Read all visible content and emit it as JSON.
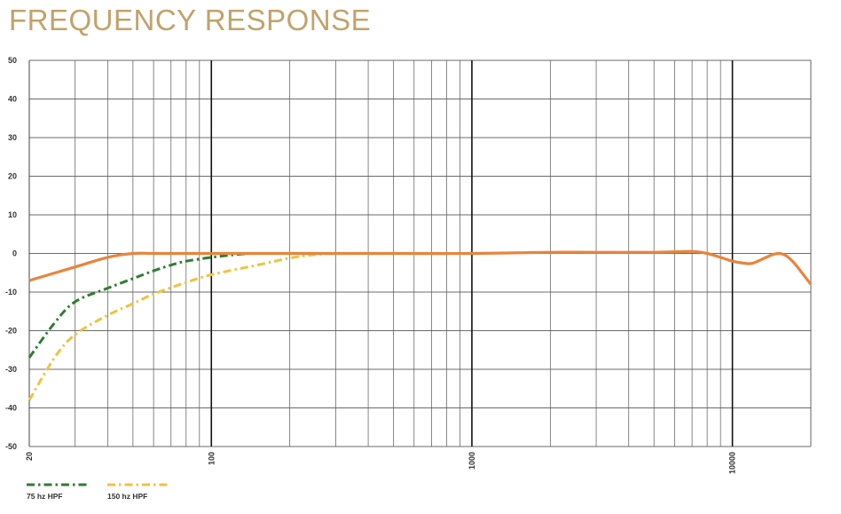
{
  "title": "FREQUENCY RESPONSE",
  "chart_data": {
    "type": "line",
    "title": "FREQUENCY RESPONSE",
    "xlabel": "",
    "ylabel": "",
    "xscale": "log",
    "xlim": [
      20,
      20000
    ],
    "ylim": [
      -50,
      50
    ],
    "ytick_labels": [
      "50",
      "40",
      "30",
      "20",
      "10",
      "0",
      "-10",
      "-20",
      "-30",
      "-40",
      "-50"
    ],
    "ytick_values": [
      50,
      40,
      30,
      20,
      10,
      0,
      -10,
      -20,
      -30,
      -40,
      -50
    ],
    "xtick_labels": [
      "20",
      "100",
      "1000",
      "10000"
    ],
    "xtick_values": [
      20,
      100,
      1000,
      10000
    ],
    "grid": true,
    "legend_placement": "bottom-left",
    "series": [
      {
        "color": "#e8843c",
        "style": "solid",
        "x": [
          20,
          30,
          40,
          50,
          60,
          80,
          100,
          150,
          200,
          300,
          500,
          1000,
          2000,
          3000,
          5000,
          7000,
          8000,
          9000,
          10000,
          11000,
          12000,
          14000,
          15000,
          16000,
          17000,
          18000,
          20000
        ],
        "y": [
          -7,
          -3.5,
          -1,
          0,
          0,
          0,
          0,
          0,
          0,
          0,
          0,
          0,
          0.3,
          0.3,
          0.3,
          0.5,
          0,
          -1,
          -2,
          -2.5,
          -2.5,
          -0.5,
          0,
          -0.5,
          -2,
          -4,
          -8
        ]
      },
      {
        "name": "75 hz HPF",
        "color": "#2e7d32",
        "style": "dashdot",
        "x": [
          20,
          25,
          30,
          40,
          50,
          60,
          70,
          80,
          100,
          120,
          140
        ],
        "y": [
          -27,
          -18,
          -12.5,
          -9,
          -6.5,
          -4.5,
          -3,
          -2,
          -1,
          -0.4,
          0
        ]
      },
      {
        "name": "150 hz HPF",
        "color": "#f2c23c",
        "style": "dashdot",
        "x": [
          20,
          25,
          30,
          40,
          50,
          60,
          80,
          100,
          150,
          200,
          250,
          300
        ],
        "y": [
          -38,
          -27,
          -21,
          -16,
          -13,
          -10.5,
          -7.5,
          -5.5,
          -3,
          -1.2,
          -0.3,
          0
        ]
      }
    ]
  }
}
